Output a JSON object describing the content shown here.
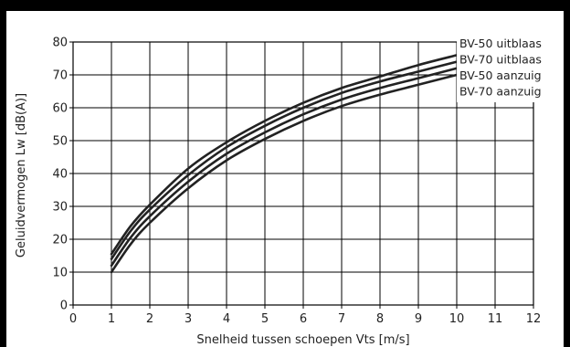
{
  "chart_data": {
    "type": "line",
    "title": "",
    "xlabel": "Snelheid tussen schoepen Vts [m/s]",
    "ylabel": "Geluidvermogen Lw [dB(A)]",
    "xlim": [
      0,
      12
    ],
    "ylim": [
      0,
      80
    ],
    "x_ticks": [
      "0",
      "1",
      "2",
      "3",
      "4",
      "5",
      "6",
      "7",
      "8",
      "9",
      "10",
      "11",
      "12"
    ],
    "y_ticks": [
      "0",
      "10",
      "20",
      "30",
      "40",
      "50",
      "60",
      "70",
      "80"
    ],
    "grid": true,
    "legend_placement": "right, at line ends",
    "colors": {
      "lines": "#222222",
      "grid": "#000000",
      "frame": "#000000"
    },
    "series": [
      {
        "name": "BV-50 uitblaas",
        "x": [
          1,
          1.5,
          2,
          3,
          4,
          5,
          6,
          7,
          8,
          9,
          10
        ],
        "y": [
          15.5,
          24,
          30.5,
          41.5,
          49.5,
          56,
          61.5,
          66,
          69.5,
          73,
          76
        ]
      },
      {
        "name": "BV-70 uitblaas",
        "x": [
          1,
          1.5,
          2,
          3,
          4,
          5,
          6,
          7,
          8,
          9,
          10
        ],
        "y": [
          14,
          22.5,
          29,
          39.5,
          48,
          54.5,
          60,
          64.5,
          68,
          71,
          74
        ]
      },
      {
        "name": "BV-50 aanzuig",
        "x": [
          1,
          1.5,
          2,
          3,
          4,
          5,
          6,
          7,
          8,
          9,
          10
        ],
        "y": [
          12,
          20.5,
          27,
          37.5,
          46,
          52.5,
          58,
          62.5,
          66,
          69,
          72
        ]
      },
      {
        "name": "BV-70 aanzuig",
        "x": [
          1,
          1.5,
          2,
          3,
          4,
          5,
          6,
          7,
          8,
          9,
          10
        ],
        "y": [
          10,
          18.5,
          25,
          35.5,
          44,
          50.5,
          56,
          60.5,
          64,
          67,
          70
        ]
      }
    ]
  }
}
